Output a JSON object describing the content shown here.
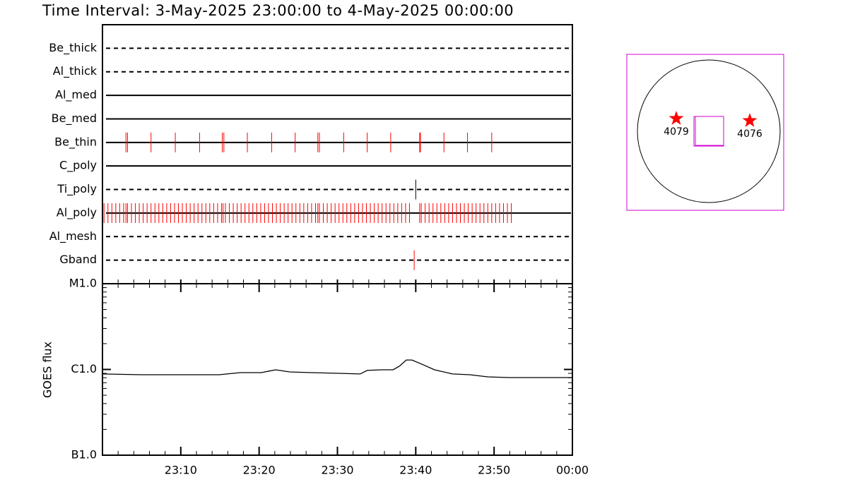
{
  "chart_data": [
    {
      "type": "timeline",
      "title": "Time Interval:  3-May-2025 23:00:00 to  4-May-2025 00:00:00",
      "xlim": [
        0,
        60
      ],
      "rows": [
        {
          "name": "Be_thick",
          "line": "dashed",
          "color": "#ff0000",
          "times": []
        },
        {
          "name": "Al_thick",
          "line": "dashed",
          "color": "#ff0000",
          "times": []
        },
        {
          "name": "Al_med",
          "line": "solid",
          "color": "#ff0000",
          "times": []
        },
        {
          "name": "Be_med",
          "line": "solid",
          "color": "#ff0000",
          "times": []
        },
        {
          "name": "Be_thin",
          "line": "solid",
          "color": "#ff0000",
          "times": [
            3.0,
            3.2,
            6.2,
            9.3,
            12.4,
            15.3,
            15.5,
            18.5,
            21.6,
            24.6,
            27.5,
            27.7,
            30.8,
            33.8,
            36.8,
            40.5,
            40.6,
            43.6,
            46.6,
            49.7
          ]
        },
        {
          "name": "C_poly",
          "line": "solid",
          "color": "#ff0000",
          "times": []
        },
        {
          "name": "Ti_poly",
          "line": "dashed",
          "color": "#000000",
          "times": [
            40.0
          ]
        },
        {
          "name": "Al_poly",
          "line": "solid",
          "color": "#ff0000",
          "times": [
            0.2,
            0.7,
            1.2,
            1.7,
            2.2,
            2.7,
            3.0,
            3.2,
            3.7,
            4.2,
            4.7,
            5.2,
            5.7,
            6.2,
            6.7,
            7.2,
            7.7,
            8.2,
            8.7,
            9.2,
            9.7,
            10.2,
            10.7,
            11.2,
            11.7,
            12.2,
            12.7,
            13.2,
            13.7,
            14.2,
            14.7,
            15.2,
            15.4,
            15.7,
            16.2,
            16.7,
            17.2,
            17.7,
            18.2,
            18.7,
            19.2,
            19.7,
            20.2,
            20.7,
            21.2,
            21.7,
            22.2,
            22.7,
            23.2,
            23.7,
            24.2,
            24.7,
            25.2,
            25.7,
            26.2,
            26.7,
            27.2,
            27.5,
            27.7,
            28.2,
            28.7,
            29.2,
            29.7,
            30.2,
            30.7,
            31.2,
            31.7,
            32.2,
            32.7,
            33.2,
            33.7,
            34.2,
            34.7,
            35.2,
            35.7,
            36.2,
            36.7,
            37.2,
            37.7,
            38.2,
            38.7,
            39.2,
            40.5,
            40.7,
            41.2,
            41.7,
            42.2,
            42.7,
            43.2,
            43.7,
            44.2,
            44.7,
            45.2,
            45.7,
            46.2,
            46.7,
            47.2,
            47.7,
            48.2,
            48.7,
            49.2,
            49.7,
            50.2,
            50.7,
            51.2,
            51.7,
            52.2
          ]
        },
        {
          "name": "Al_mesh",
          "line": "dashed",
          "color": "#ff0000",
          "times": []
        },
        {
          "name": "Gband",
          "line": "dashed",
          "color": "#ff0000",
          "times": [
            39.8
          ]
        }
      ]
    },
    {
      "type": "line",
      "ylabel": "GOES flux",
      "log": true,
      "color": "#000000",
      "xlim": [
        0,
        60
      ],
      "xticks": [
        {
          "value": 10,
          "label": "23:10"
        },
        {
          "value": 20,
          "label": "23:20"
        },
        {
          "value": 30,
          "label": "23:30"
        },
        {
          "value": 40,
          "label": "23:40"
        },
        {
          "value": 50,
          "label": "23:50"
        },
        {
          "value": 60,
          "label": "00:00"
        }
      ],
      "ylim": [
        1e-07,
        1e-05
      ],
      "yticks": [
        {
          "value": 1e-07,
          "label": "B1.0"
        },
        {
          "value": 1e-06,
          "label": "C1.0"
        },
        {
          "value": 1e-05,
          "label": "M1.0"
        }
      ],
      "x": [
        0,
        5.0,
        11.3,
        14.9,
        16.7,
        17.6,
        20.3,
        22.1,
        23.9,
        26.6,
        30.2,
        32.9,
        33.8,
        35.6,
        37.1,
        37.9,
        38.8,
        39.5,
        40.6,
        42.4,
        44.7,
        46.9,
        49.2,
        51.9,
        60
      ],
      "values": [
        8.85e-07,
        8.68e-07,
        8.68e-07,
        8.68e-07,
        9.01e-07,
        9.18e-07,
        9.18e-07,
        9.91e-07,
        9.36e-07,
        9.18e-07,
        9.01e-07,
        8.85e-07,
        9.73e-07,
        9.91e-07,
        9.91e-07,
        1.09e-06,
        1.29e-06,
        1.29e-06,
        1.17e-06,
        9.91e-07,
        8.85e-07,
        8.68e-07,
        8.2e-07,
        8.04e-07,
        8.04e-07
      ]
    }
  ],
  "context": {
    "regions": [
      {
        "label": "4079"
      },
      {
        "label": "4076"
      }
    ]
  }
}
